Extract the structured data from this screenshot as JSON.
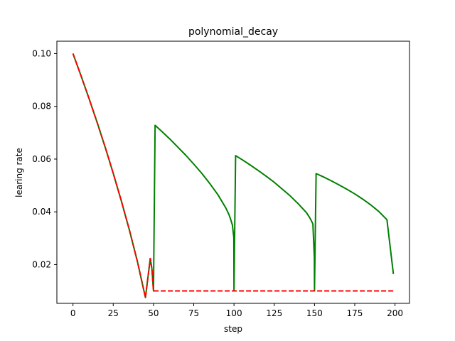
{
  "chart_data": {
    "type": "line",
    "title": "polynomial_decay",
    "xlabel": "step",
    "ylabel": "learing rate",
    "xlim": [
      -10,
      209
    ],
    "ylim": [
      0.0053,
      0.1047
    ],
    "xticks": [
      0,
      25,
      50,
      75,
      100,
      125,
      150,
      175,
      200
    ],
    "yticks": [
      0.02,
      0.04,
      0.06,
      0.08,
      0.1
    ],
    "ytick_labels": [
      "0.02",
      "0.04",
      "0.06",
      "0.08",
      "0.10"
    ],
    "grid": false,
    "legend": "none",
    "series": [
      {
        "color": "#008000",
        "style": "solid",
        "x": [
          0,
          5,
          10,
          15,
          20,
          25,
          30,
          35,
          40,
          45,
          48,
          49,
          49.9,
          50,
          51,
          55,
          60,
          65,
          70,
          75,
          80,
          85,
          90,
          95,
          97,
          98,
          99,
          99.9,
          100,
          101,
          105,
          110,
          115,
          120,
          125,
          130,
          135,
          140,
          145,
          147,
          148,
          149,
          149.9,
          150,
          151,
          155,
          160,
          165,
          170,
          175,
          180,
          185,
          190,
          195,
          199
        ],
        "y": [
          0.1,
          0.0916,
          0.0829,
          0.0739,
          0.0645,
          0.0546,
          0.0442,
          0.0332,
          0.0212,
          0.0075,
          0.0223,
          0.0185,
          0.0109,
          0.01,
          0.0728,
          0.0706,
          0.0677,
          0.0646,
          0.0615,
          0.0581,
          0.0546,
          0.0507,
          0.0465,
          0.0414,
          0.0388,
          0.037,
          0.035,
          0.0302,
          0.01,
          0.0613,
          0.0598,
          0.0578,
          0.0557,
          0.0535,
          0.0512,
          0.0486,
          0.046,
          0.043,
          0.0397,
          0.0378,
          0.0367,
          0.0354,
          0.0227,
          0.01,
          0.0545,
          0.0534,
          0.0519,
          0.0503,
          0.0486,
          0.0468,
          0.0448,
          0.0426,
          0.0401,
          0.037,
          0.0164
        ]
      },
      {
        "color": "#ff0000",
        "style": "dashed",
        "x": [
          0,
          5,
          10,
          15,
          20,
          25,
          30,
          35,
          40,
          45,
          48,
          49,
          49.9,
          50,
          60,
          80,
          100,
          120,
          140,
          160,
          180,
          199
        ],
        "y": [
          0.1,
          0.0916,
          0.0829,
          0.0739,
          0.0645,
          0.0546,
          0.0442,
          0.0332,
          0.0212,
          0.0075,
          0.0223,
          0.0185,
          0.0109,
          0.01,
          0.01,
          0.01,
          0.01,
          0.01,
          0.01,
          0.01,
          0.01,
          0.01
        ]
      }
    ]
  }
}
